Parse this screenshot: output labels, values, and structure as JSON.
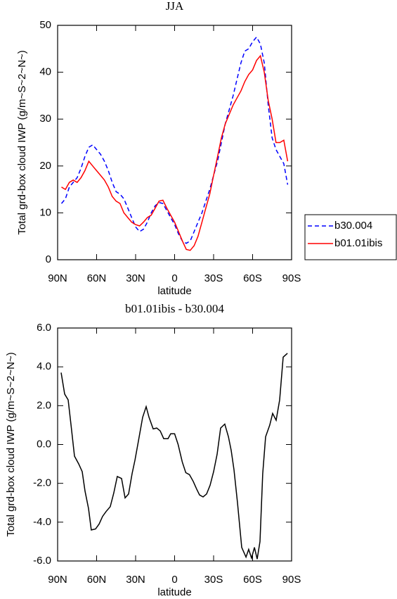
{
  "chart_data": [
    {
      "type": "line",
      "title": "JJA",
      "xlabel": "latitude",
      "ylabel": "Total grd-box cloud IWP (g/m~S~2~N~)",
      "x": [
        87,
        84,
        81,
        78,
        75,
        72,
        69,
        66,
        63,
        60,
        57,
        54,
        51,
        48,
        45,
        42,
        39,
        36,
        33,
        30,
        27,
        24,
        21,
        18,
        15,
        12,
        9,
        6,
        3,
        0,
        -3,
        -6,
        -9,
        -12,
        -15,
        -18,
        -21,
        -24,
        -27,
        -30,
        -33,
        -36,
        -39,
        -42,
        -45,
        -48,
        -51,
        -54,
        -57,
        -60,
        -63,
        -66,
        -69,
        -72,
        -75,
        -78,
        -81,
        -84,
        -87
      ],
      "series": [
        {
          "name": "b30.004",
          "color": "#0000ff",
          "line_style": "dashed",
          "values": [
            12,
            13,
            15.5,
            16.5,
            17.5,
            19.5,
            22,
            24,
            24.5,
            23.5,
            22.5,
            21,
            19,
            16.5,
            14.5,
            14,
            13,
            11,
            9,
            7,
            6,
            6.5,
            8,
            10,
            11.5,
            12.2,
            12,
            10.5,
            9,
            7.5,
            5.5,
            4,
            3.5,
            4,
            6,
            8,
            10,
            12.5,
            15,
            18,
            21,
            25,
            29,
            32,
            35,
            38.5,
            42,
            44.5,
            45,
            46.5,
            47.5,
            46,
            42,
            33,
            26,
            23.5,
            22,
            20.5,
            16
          ]
        },
        {
          "name": "b01.01ibis",
          "color": "#ff0000",
          "line_style": "solid",
          "values": [
            15.5,
            15,
            16.5,
            17,
            16.5,
            17.5,
            19,
            21,
            20,
            19,
            18,
            17,
            15.5,
            13.5,
            12.5,
            12,
            10,
            9,
            8,
            7.5,
            7.2,
            8,
            9,
            9.5,
            11,
            12.5,
            12.7,
            11,
            9.5,
            8,
            6,
            4,
            2.2,
            2,
            3,
            5,
            8,
            11,
            14,
            18,
            22,
            26,
            29,
            31,
            33,
            34.5,
            36,
            38,
            39.5,
            40.5,
            42.5,
            43.5,
            40,
            34,
            30,
            25,
            25,
            25.5,
            21
          ]
        }
      ],
      "xlim": [
        90,
        -90
      ],
      "xticks": [
        {
          "value": 90,
          "label": "90N"
        },
        {
          "value": 60,
          "label": "60N"
        },
        {
          "value": 30,
          "label": "30N"
        },
        0,
        {
          "value": -30,
          "label": "30S"
        },
        {
          "value": -60,
          "label": "60S"
        },
        {
          "value": -90,
          "label": "90S"
        }
      ],
      "ylim": [
        0,
        50
      ],
      "yticks": [
        0,
        10,
        20,
        30,
        40,
        50
      ],
      "legend": "right"
    },
    {
      "type": "line",
      "title": "b01.01ibis - b30.004",
      "xlabel": "latitude",
      "ylabel": "Total grd-box cloud IWP (g/m~S~2~N~)",
      "x": [
        87.3,
        84.6,
        81.9,
        79.7,
        77,
        73.8,
        71.1,
        68.9,
        66.2,
        64.1,
        60.8,
        58.1,
        55.4,
        52.7,
        49.5,
        46.8,
        44.1,
        40.8,
        38.1,
        35.4,
        32.7,
        30.5,
        27.8,
        24.6,
        21.9,
        19.7,
        16.5,
        13.8,
        11.1,
        8.4,
        5.1,
        3,
        0,
        -2.7,
        -5.9,
        -8.6,
        -11.4,
        -14.3,
        -17,
        -19.2,
        -21.9,
        -24.6,
        -27.3,
        -30,
        -32.7,
        -35.4,
        -38.6,
        -41.4,
        -43.5,
        -45.7,
        -48.4,
        -51.6,
        -54.9,
        -57,
        -59.2,
        -61.4,
        -63.5,
        -65.7,
        -67.8,
        -70,
        -73.2,
        -75.4,
        -78.1,
        -80.8,
        -83.5,
        -86.8
      ],
      "color": "#000000",
      "values": [
        3.7,
        2.6,
        2.3,
        1.0,
        -0.6,
        -1.0,
        -1.4,
        -2.4,
        -3.3,
        -4.4,
        -4.35,
        -4.1,
        -3.7,
        -3.45,
        -3.2,
        -2.5,
        -1.65,
        -1.75,
        -2.75,
        -2.55,
        -1.5,
        -0.8,
        0.2,
        1.4,
        1.95,
        1.4,
        0.8,
        0.85,
        0.7,
        0.3,
        0.3,
        0.55,
        0.55,
        0.0,
        -0.9,
        -1.45,
        -1.55,
        -1.9,
        -2.3,
        -2.6,
        -2.7,
        -2.55,
        -2.1,
        -1.4,
        -0.5,
        0.85,
        1.05,
        0.4,
        -0.3,
        -1.3,
        -3.0,
        -5.3,
        -5.8,
        -5.4,
        -5.85,
        -5.3,
        -5.9,
        -5.0,
        -1.5,
        0.4,
        1.0,
        1.6,
        1.25,
        2.3,
        4.5,
        4.7
      ],
      "xlim": [
        90,
        -90
      ],
      "xticks": [
        {
          "value": 90,
          "label": "90N"
        },
        {
          "value": 60,
          "label": "60N"
        },
        {
          "value": 30,
          "label": "30N"
        },
        0,
        {
          "value": -30,
          "label": "30S"
        },
        {
          "value": -60,
          "label": "60S"
        },
        {
          "value": -90,
          "label": "90S"
        }
      ],
      "ylim": [
        -6,
        6
      ],
      "yticks": [
        {
          "value": -6,
          "label": "-6.0"
        },
        {
          "value": -4,
          "label": "-4.0"
        },
        {
          "value": -2,
          "label": "-2.0"
        },
        {
          "value": 0,
          "label": "0.0"
        },
        {
          "value": 2,
          "label": "2.0"
        },
        {
          "value": 4,
          "label": "4.0"
        },
        {
          "value": 6,
          "label": "6.0"
        }
      ]
    }
  ]
}
